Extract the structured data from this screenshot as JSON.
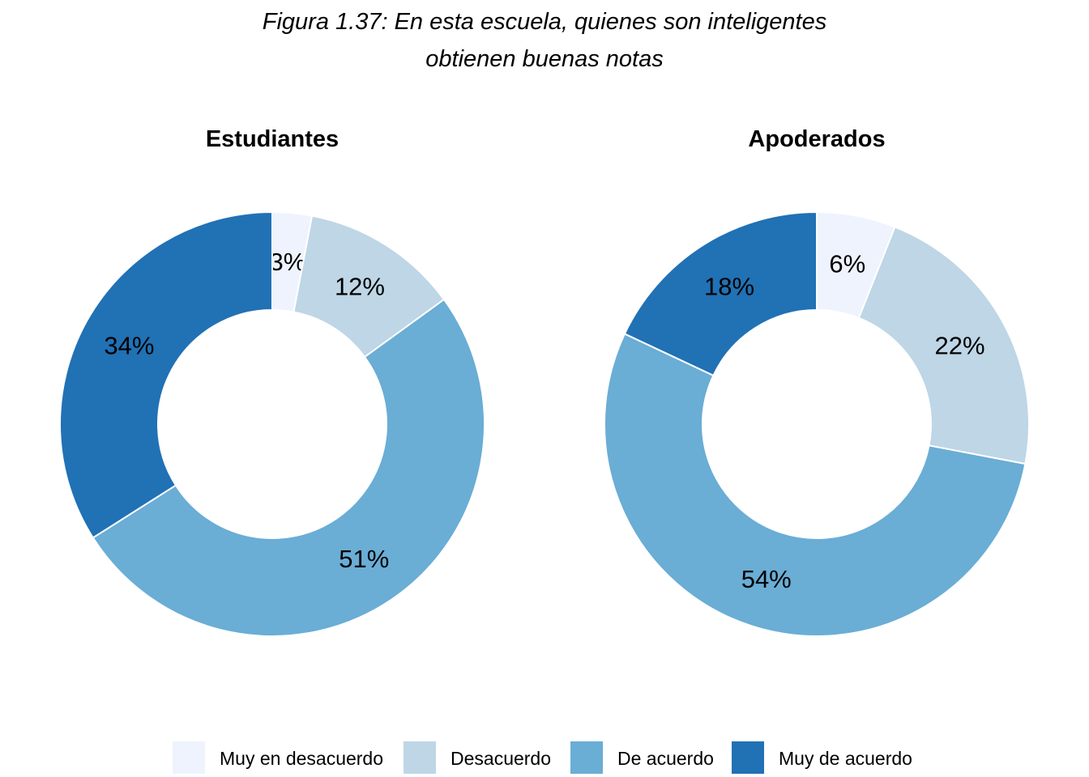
{
  "figure_title": {
    "line1": "Figura 1.37: En esta escuela, quienes son inteligentes",
    "line2": "obtienen buenas notas"
  },
  "colors": {
    "muy_en_desacuerdo": "#eef3fd",
    "desacuerdo": "#bed6e6",
    "de_acuerdo": "#6aadd5",
    "muy_de_acuerdo": "#2171b5"
  },
  "chart_data": [
    {
      "type": "pie",
      "subtype": "donut",
      "title": "Estudiantes",
      "categories": [
        "Muy en desacuerdo",
        "Desacuerdo",
        "De acuerdo",
        "Muy de acuerdo"
      ],
      "values": [
        3,
        12,
        51,
        34
      ],
      "labels": [
        "3%",
        "12%",
        "51%",
        "34%"
      ],
      "colors": [
        "#eef3fd",
        "#bed6e6",
        "#6aadd5",
        "#2171b5"
      ],
      "start": "top",
      "direction": "clockwise"
    },
    {
      "type": "pie",
      "subtype": "donut",
      "title": "Apoderados",
      "categories": [
        "Muy en desacuerdo",
        "Desacuerdo",
        "De acuerdo",
        "Muy de acuerdo"
      ],
      "values": [
        6,
        22,
        54,
        18
      ],
      "labels": [
        "6%",
        "22%",
        "54%",
        "18%"
      ],
      "colors": [
        "#eef3fd",
        "#bed6e6",
        "#6aadd5",
        "#2171b5"
      ],
      "start": "top",
      "direction": "clockwise"
    }
  ],
  "legend": {
    "position": "bottom",
    "items": [
      {
        "label": "Muy en desacuerdo",
        "color": "#eef3fd"
      },
      {
        "label": "Desacuerdo",
        "color": "#bed6e6"
      },
      {
        "label": "De acuerdo",
        "color": "#6aadd5"
      },
      {
        "label": "Muy de acuerdo",
        "color": "#2171b5"
      }
    ]
  }
}
